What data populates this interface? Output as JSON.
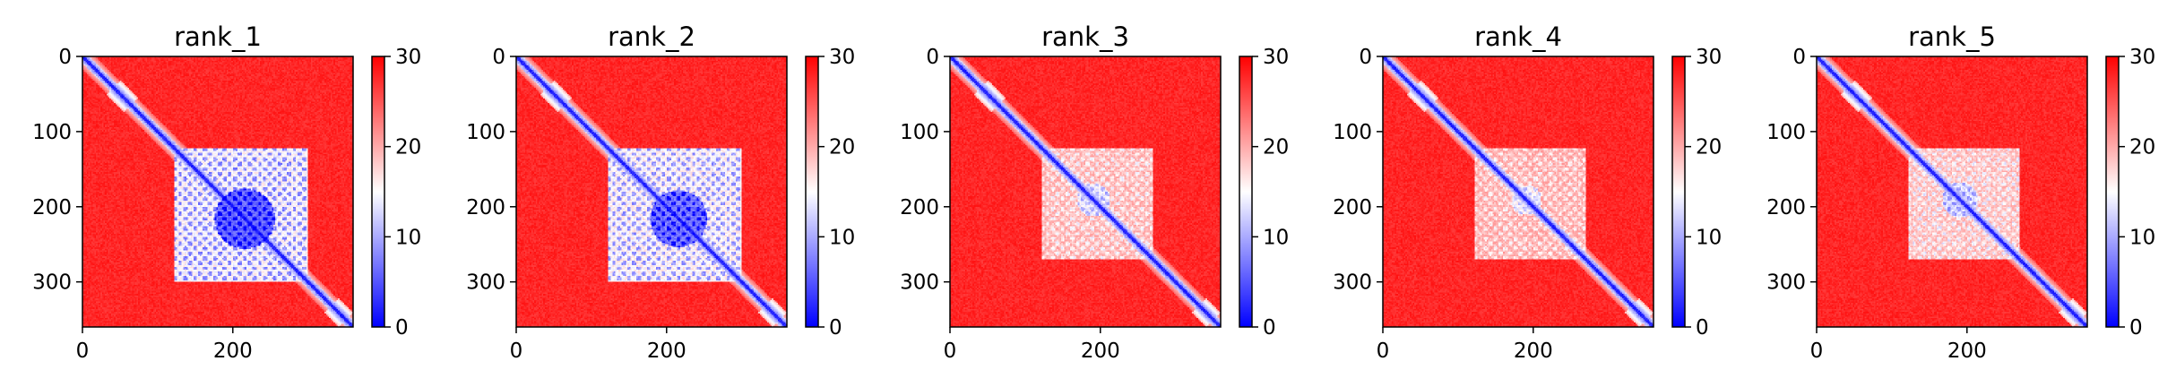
{
  "figure": {
    "colormap": {
      "name": "bwr",
      "stops": [
        "#0000ff",
        "#ffffff",
        "#ff0000"
      ],
      "vmin": 0,
      "vmax": 30,
      "ticks": [
        0,
        10,
        20,
        30
      ]
    }
  },
  "chart_data": [
    {
      "type": "heatmap",
      "title": "rank_1",
      "xlabel": "",
      "ylabel": "",
      "xlim": [
        0,
        360
      ],
      "ylim": [
        360,
        0
      ],
      "xticks": [
        0,
        200
      ],
      "yticks": [
        0,
        100,
        200,
        300
      ],
      "diagonal_low_value": 1,
      "background_value": 29,
      "domain_block": {
        "start": 120,
        "end": 300,
        "center": 215,
        "strength": 1.0
      }
    },
    {
      "type": "heatmap",
      "title": "rank_2",
      "xlabel": "",
      "ylabel": "",
      "xlim": [
        0,
        360
      ],
      "ylim": [
        360,
        0
      ],
      "xticks": [
        0,
        200
      ],
      "yticks": [
        0,
        100,
        200,
        300
      ],
      "diagonal_low_value": 1,
      "background_value": 29,
      "domain_block": {
        "start": 120,
        "end": 300,
        "center": 215,
        "strength": 0.95
      }
    },
    {
      "type": "heatmap",
      "title": "rank_3",
      "xlabel": "",
      "ylabel": "",
      "xlim": [
        0,
        360
      ],
      "ylim": [
        360,
        0
      ],
      "xticks": [
        0,
        200
      ],
      "yticks": [
        0,
        100,
        200,
        300
      ],
      "diagonal_low_value": 1,
      "background_value": 29,
      "domain_block": {
        "start": 120,
        "end": 270,
        "center": 190,
        "strength": 0.55
      }
    },
    {
      "type": "heatmap",
      "title": "rank_4",
      "xlabel": "",
      "ylabel": "",
      "xlim": [
        0,
        360
      ],
      "ylim": [
        360,
        0
      ],
      "xticks": [
        0,
        200
      ],
      "yticks": [
        0,
        100,
        200,
        300
      ],
      "diagonal_low_value": 1,
      "background_value": 29,
      "domain_block": {
        "start": 120,
        "end": 270,
        "center": 190,
        "strength": 0.5
      }
    },
    {
      "type": "heatmap",
      "title": "rank_5",
      "xlabel": "",
      "ylabel": "",
      "xlim": [
        0,
        360
      ],
      "ylim": [
        360,
        0
      ],
      "xticks": [
        0,
        200
      ],
      "yticks": [
        0,
        100,
        200,
        300
      ],
      "diagonal_low_value": 1,
      "background_value": 29,
      "domain_block": {
        "start": 120,
        "end": 270,
        "center": 190,
        "strength": 0.6
      }
    }
  ]
}
